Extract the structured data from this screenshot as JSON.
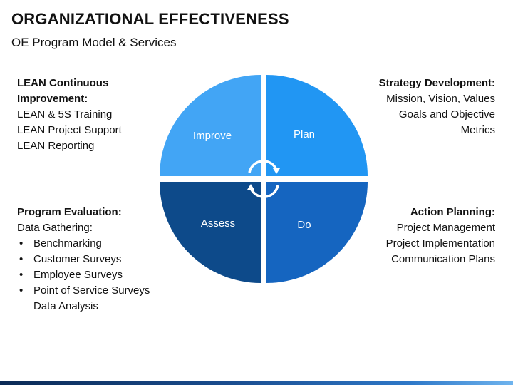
{
  "header": {
    "title": "ORGANIZATIONAL EFFECTIVENESS",
    "subtitle": "OE Program Model & Services"
  },
  "quadrants": {
    "improve": {
      "label": "Improve",
      "color": "#42a5f5"
    },
    "plan": {
      "label": "Plan",
      "color": "#2196f3"
    },
    "assess": {
      "label": "Assess",
      "color": "#0d4a8a"
    },
    "do": {
      "label": "Do",
      "color": "#1565c0"
    }
  },
  "lean": {
    "heading_line1": "LEAN Continuous",
    "heading_line2": "Improvement:",
    "items": [
      "LEAN & 5S Training",
      "LEAN Project Support",
      "LEAN Reporting"
    ]
  },
  "strategy": {
    "heading": "Strategy Development:",
    "items": [
      "Mission, Vision, Values",
      "Goals and Objective",
      "Metrics"
    ]
  },
  "evaluation": {
    "heading": "Program Evaluation:",
    "intro": "Data Gathering:",
    "bullets": [
      "Benchmarking",
      "Customer Surveys",
      "Employee Surveys",
      "Point of Service Surveys"
    ],
    "trailing": "Data Analysis"
  },
  "action": {
    "heading": "Action Planning:",
    "items": [
      "Project Management",
      "Project Implementation",
      "Communication Plans"
    ]
  },
  "cycle_icon": "circular-arrows-icon"
}
